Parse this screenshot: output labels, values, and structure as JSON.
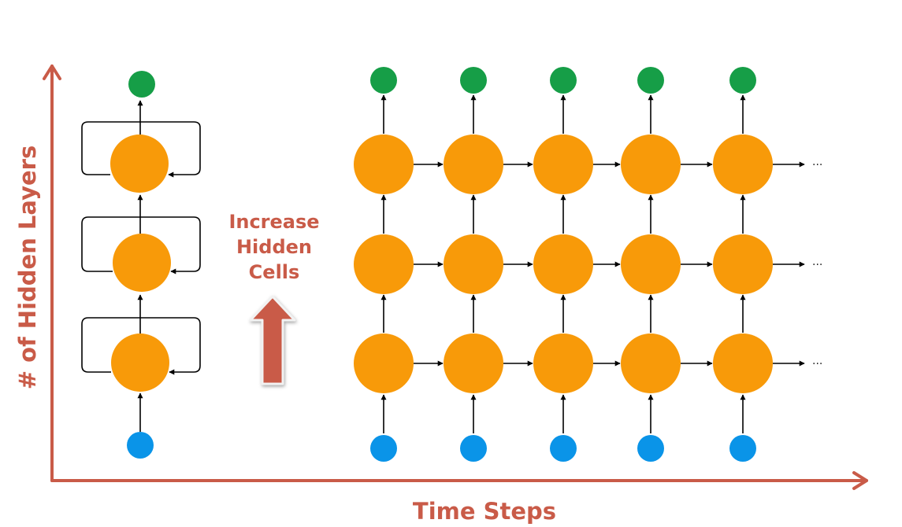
{
  "axes": {
    "x_label": "Time Steps",
    "y_label": "# of Hidden Layers"
  },
  "callout": {
    "lines": [
      "Increase",
      "Hidden",
      "Cells"
    ]
  },
  "continuation": "...",
  "network": {
    "layers": 3,
    "time_steps": 5
  },
  "colors": {
    "input_node": "#0A94E8",
    "hidden_node": "#F89A09",
    "output_node": "#169E47",
    "axis": "#C95B48",
    "arrow": "#000000"
  }
}
